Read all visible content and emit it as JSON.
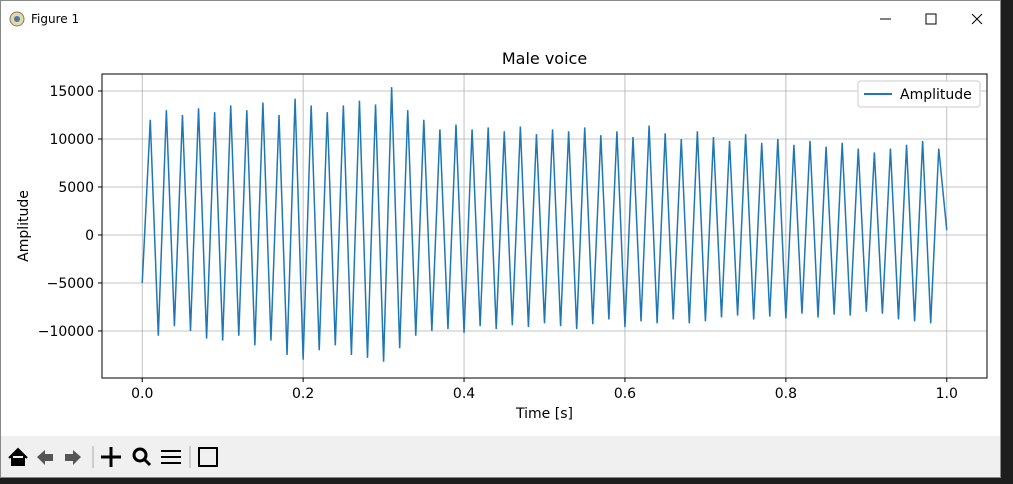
{
  "window": {
    "title": "Figure 1"
  },
  "chart_data": {
    "type": "line",
    "title": "Male voice",
    "xlabel": "Time [s]",
    "ylabel": "Amplitude",
    "x": [
      0,
      0.01,
      0.02,
      0.03,
      0.04,
      0.05,
      0.06,
      0.07,
      0.08,
      0.09,
      0.1,
      0.11,
      0.12,
      0.13,
      0.14,
      0.15,
      0.16,
      0.17,
      0.18,
      0.19,
      0.2,
      0.21,
      0.22,
      0.23,
      0.24,
      0.25,
      0.26,
      0.27,
      0.28,
      0.29,
      0.3,
      0.31,
      0.32,
      0.33,
      0.34,
      0.35,
      0.36,
      0.37,
      0.38,
      0.39,
      0.4,
      0.41,
      0.42,
      0.43,
      0.44,
      0.45,
      0.46,
      0.47,
      0.48,
      0.49,
      0.5,
      0.51,
      0.52,
      0.53,
      0.54,
      0.55,
      0.56,
      0.57,
      0.58,
      0.59,
      0.6,
      0.61,
      0.62,
      0.63,
      0.64,
      0.65,
      0.66,
      0.67,
      0.68,
      0.69,
      0.7,
      0.71,
      0.72,
      0.73,
      0.74,
      0.75,
      0.76,
      0.77,
      0.78,
      0.79,
      0.8,
      0.81,
      0.82,
      0.83,
      0.84,
      0.85,
      0.86,
      0.87,
      0.88,
      0.89,
      0.9,
      0.91,
      0.92,
      0.93,
      0.94,
      0.95,
      0.96,
      0.97,
      0.98,
      0.99,
      1
    ],
    "series": [
      {
        "name": "Amplitude",
        "color": "#1f77b4",
        "values": [
          -5000,
          12000,
          -10500,
          13000,
          -9500,
          12500,
          -10000,
          13200,
          -10800,
          12800,
          -11000,
          13500,
          -10500,
          13000,
          -11500,
          13800,
          -11000,
          12500,
          -12500,
          14200,
          -13000,
          13500,
          -12000,
          12800,
          -11500,
          13500,
          -12500,
          14000,
          -12800,
          13600,
          -13200,
          15400,
          -11800,
          13000,
          -10500,
          12000,
          -10000,
          11000,
          -9800,
          11500,
          -10200,
          11000,
          -9500,
          11200,
          -9800,
          10800,
          -9400,
          11300,
          -9600,
          10500,
          -9200,
          11000,
          -9500,
          10800,
          -9800,
          11200,
          -9300,
          10400,
          -8800,
          10800,
          -9600,
          10200,
          -9000,
          11400,
          -9200,
          10600,
          -8800,
          10000,
          -9200,
          10800,
          -9000,
          10200,
          -8600,
          9800,
          -8400,
          10500,
          -8800,
          9600,
          -8500,
          10000,
          -8700,
          9400,
          -8200,
          9800,
          -8600,
          9200,
          -8300,
          9600,
          -8400,
          9000,
          -8000,
          8600,
          -8200,
          9000,
          -8800,
          9400,
          -9000,
          9800,
          -9200,
          9000,
          500
        ]
      }
    ],
    "xlim": [
      -0.05,
      1.05
    ],
    "xticks": [
      {
        "value": 0,
        "label": "0.0"
      },
      0.2,
      0.4,
      0.6,
      0.8,
      {
        "value": 1,
        "label": "1.0"
      }
    ],
    "ylim": [
      -14900,
      16770
    ],
    "yticks": [
      {
        "value": -10000,
        "label": "−10000"
      },
      {
        "value": -5000,
        "label": "−5000"
      },
      0,
      5000,
      10000,
      15000
    ],
    "grid": true,
    "legend": "upper right"
  }
}
